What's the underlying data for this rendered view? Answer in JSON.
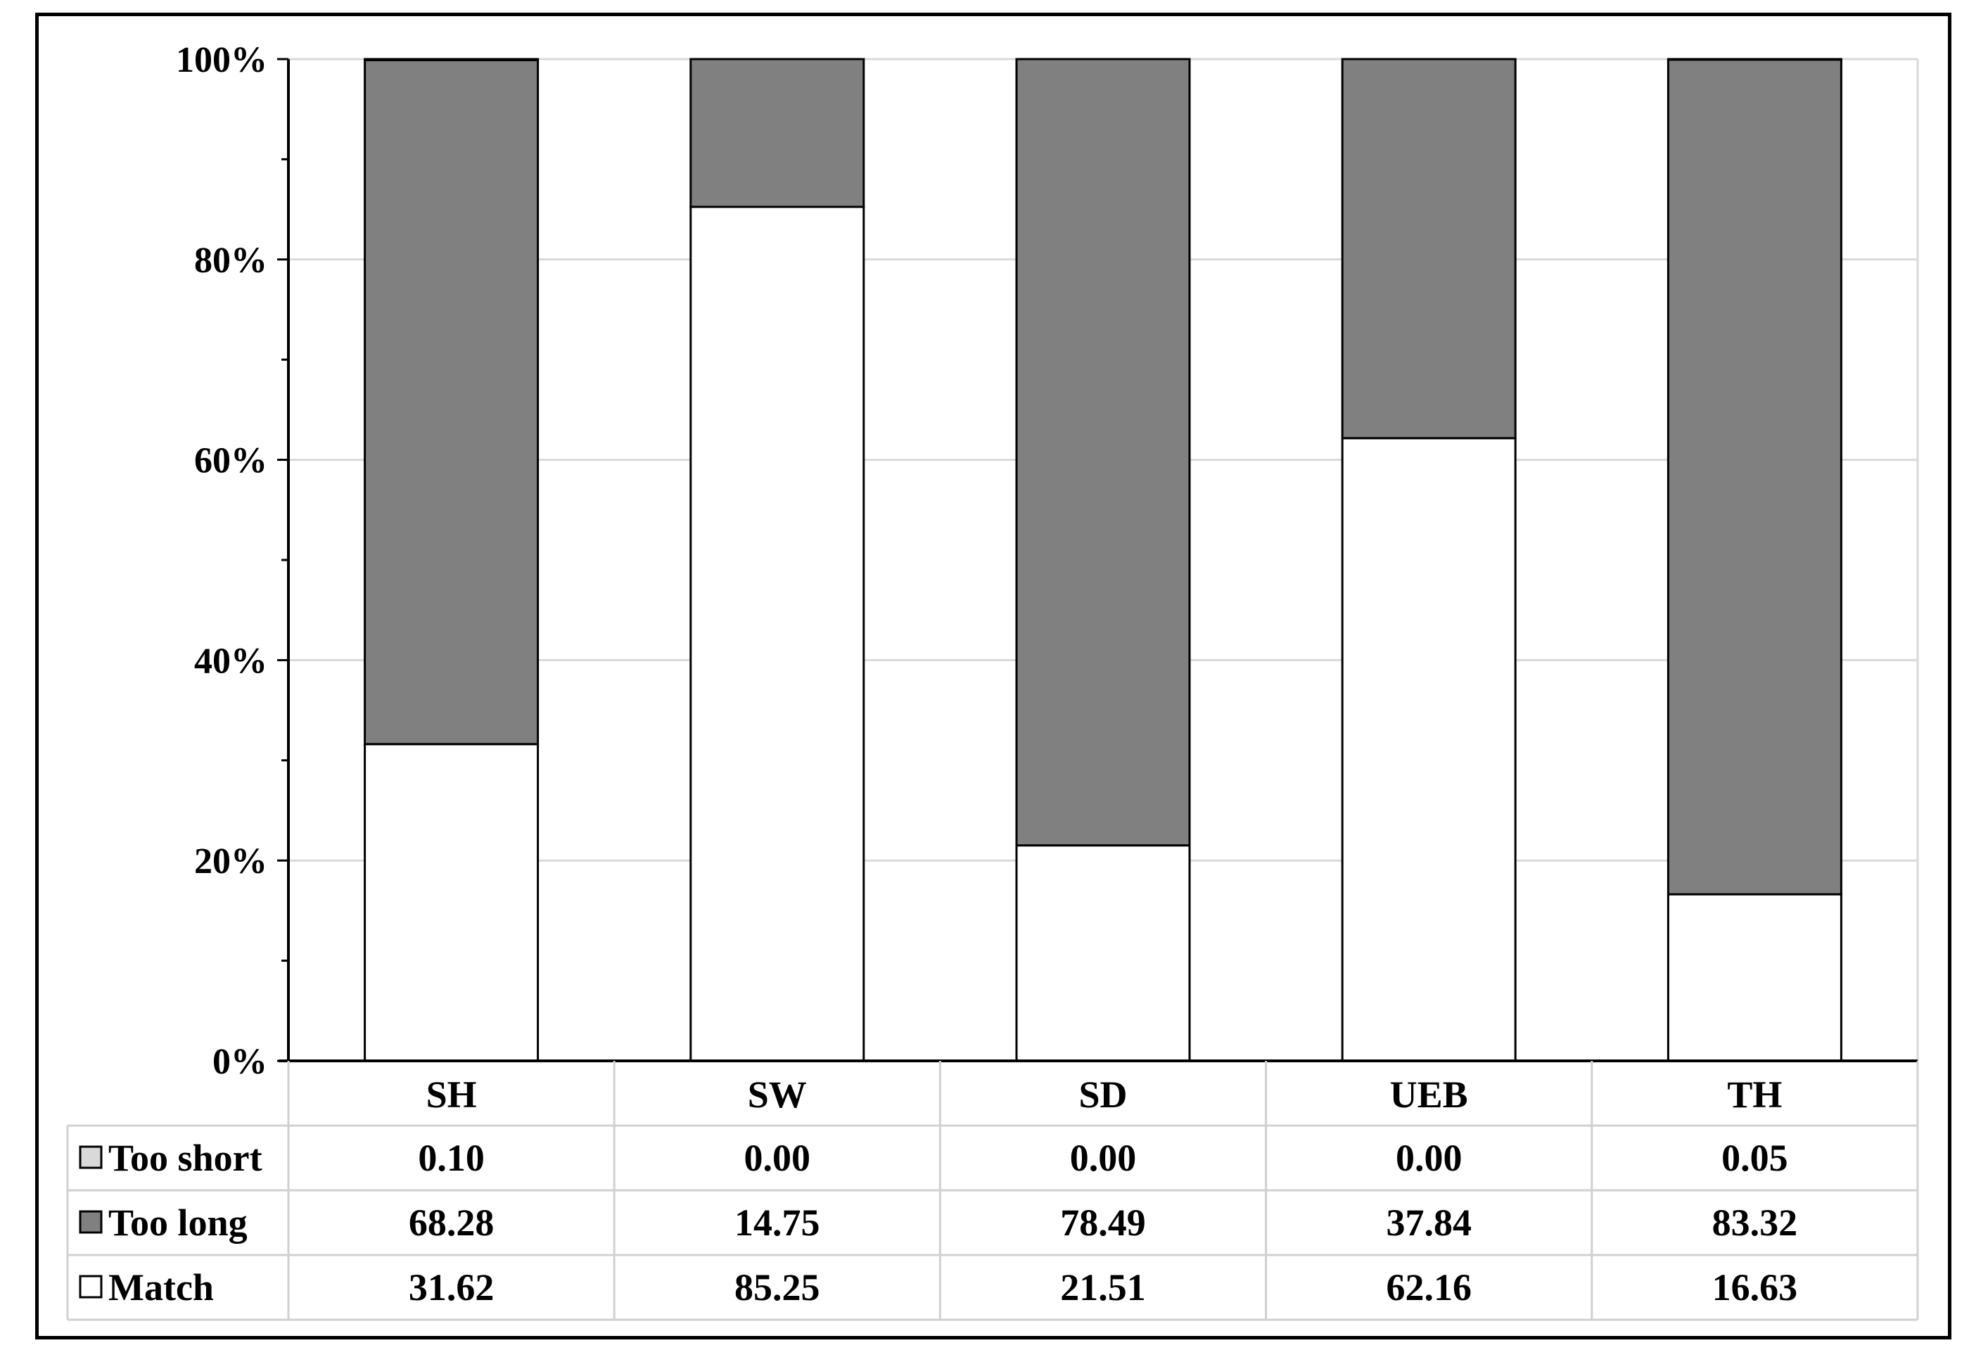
{
  "chart_data": {
    "type": "bar",
    "stacked": true,
    "percent_stacked": true,
    "categories": [
      "SH",
      "SW",
      "SD",
      "UEB",
      "TH"
    ],
    "series": [
      {
        "name": "Match",
        "values": [
          31.62,
          85.25,
          21.51,
          62.16,
          16.63
        ],
        "color": "#ffffff"
      },
      {
        "name": "Too long",
        "values": [
          68.28,
          14.75,
          78.49,
          37.84,
          83.32
        ],
        "color": "#808080"
      },
      {
        "name": "Too short",
        "values": [
          0.1,
          0.0,
          0.0,
          0.0,
          0.05
        ],
        "color": "#d9d9d9"
      }
    ],
    "ylim": [
      0,
      100
    ],
    "yticks": [
      "0%",
      "20%",
      "40%",
      "60%",
      "80%",
      "100%"
    ],
    "grid": true,
    "legend": "data-table-left",
    "data_table": {
      "rows": [
        {
          "label": "Too short",
          "values": [
            "0.10",
            "0.00",
            "0.00",
            "0.00",
            "0.05"
          ]
        },
        {
          "label": "Too long",
          "values": [
            "68.28",
            "14.75",
            "78.49",
            "37.84",
            "83.32"
          ]
        },
        {
          "label": "Match",
          "values": [
            "31.62",
            "85.25",
            "21.51",
            "62.16",
            "16.63"
          ]
        }
      ]
    }
  }
}
